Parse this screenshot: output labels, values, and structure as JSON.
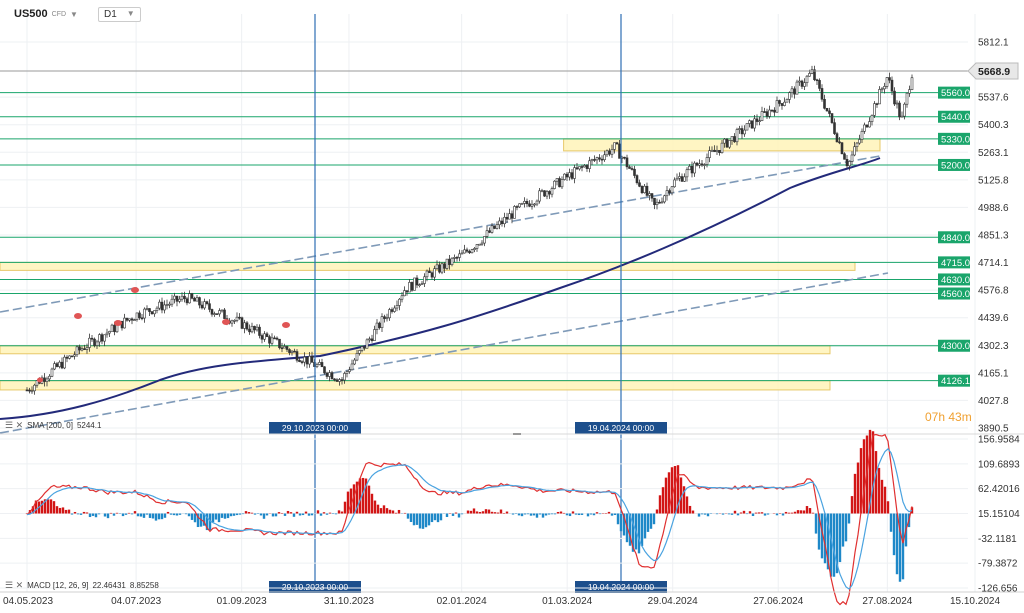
{
  "header": {
    "symbol": "US500",
    "symbol_type": "CFD",
    "timeframe": "D1"
  },
  "timer": "07h 43m",
  "price_axis": [
    "5812.1",
    "5537.6",
    "5400.3",
    "5263.1",
    "5125.8",
    "4988.6",
    "4851.3",
    "4714.1",
    "4576.8",
    "4439.6",
    "4302.3",
    "4165.1",
    "4027.8",
    "3890.5"
  ],
  "macd_axis": [
    "156.9584",
    "109.6893",
    "62.42016",
    "15.15104",
    "-32.1181",
    "-79.3872",
    "-126.656"
  ],
  "date_axis": [
    "04.05.2023",
    "04.07.2023",
    "01.09.2023",
    "31.10.2023",
    "02.01.2024",
    "01.03.2024",
    "29.04.2024",
    "27.06.2024",
    "27.08.2024",
    "15.10.2024"
  ],
  "current_price": "5668.9",
  "level_tags": [
    "5560.0",
    "5440.0",
    "5330.0",
    "5200.0",
    "4840.0",
    "4715.0",
    "4630.0",
    "4560.0",
    "4300.0",
    "4126.1"
  ],
  "vlines": [
    "29.10.2023 00:00",
    "19.04.2024 00:00"
  ],
  "sma_label": {
    "icon": "sma-icon",
    "text": "SMA [200, 0]",
    "value": "5244.1"
  },
  "macd_label": {
    "icon": "macd-icon",
    "text": "MACD [12, 26, 9]",
    "value1": "22.46431",
    "value2": "8.85258"
  },
  "colors": {
    "level": "#1aa56b",
    "zone": "#fff3b8",
    "zone_border": "#e7c86a",
    "sma": "#232a7a",
    "trend": "#7f9ab8",
    "vline": "#2e6fb3",
    "hist_up": "#d21515",
    "hist_down": "#1e88c8",
    "macd_line": "#e03030",
    "signal_line": "#4aa3e0"
  },
  "chart_data": [
    {
      "type": "candlestick",
      "symbol": "US500",
      "timeframe": "D1",
      "ylim": [
        3890.5,
        5812.1
      ],
      "x": [
        "04.05.2023",
        "04.07.2023",
        "01.09.2023",
        "31.10.2023",
        "02.01.2024",
        "01.03.2024",
        "29.04.2024",
        "27.06.2024",
        "27.08.2024",
        "15.10.2024"
      ],
      "close_path": [
        [
          "04.05.2023",
          4080
        ],
        [
          "04.06.2023",
          4290
        ],
        [
          "04.07.2023",
          4455
        ],
        [
          "01.08.2023",
          4540
        ],
        [
          "01.09.2023",
          4410
        ],
        [
          "01.10.2023",
          4260
        ],
        [
          "27.10.2023",
          4130
        ],
        [
          "31.10.2023",
          4190
        ],
        [
          "01.12.2023",
          4580
        ],
        [
          "02.01.2024",
          4750
        ],
        [
          "01.02.2024",
          4970
        ],
        [
          "01.03.2024",
          5140
        ],
        [
          "28.03.2024",
          5290
        ],
        [
          "19.04.2024",
          4990
        ],
        [
          "29.04.2024",
          5110
        ],
        [
          "01.06.2024",
          5330
        ],
        [
          "01.07.2024",
          5530
        ],
        [
          "16.07.2024",
          5660
        ],
        [
          "05.08.2024",
          5200
        ],
        [
          "27.08.2024",
          5640
        ],
        [
          "04.09.2024",
          5420
        ],
        [
          "10.09.2024",
          5668.9
        ]
      ],
      "current": 5668.9,
      "horizontal_levels": [
        5560.0,
        5440.0,
        5330.0,
        5200.0,
        4840.0,
        4715.0,
        4630.0,
        4560.0,
        4300.0,
        4126.1
      ],
      "zones": [
        [
          5270,
          5330
        ],
        [
          4680,
          4715
        ],
        [
          4260,
          4300
        ],
        [
          4080,
          4126.1
        ]
      ],
      "sma": {
        "name": "SMA [200, 0]",
        "value": 5244.1
      },
      "vertical_markers": [
        "29.10.2023 00:00",
        "19.04.2024 00:00"
      ]
    },
    {
      "type": "bar",
      "name": "MACD [12, 26, 9]",
      "ylim": [
        -126.656,
        156.9584
      ],
      "values": [
        22.46431,
        8.85258
      ]
    }
  ]
}
